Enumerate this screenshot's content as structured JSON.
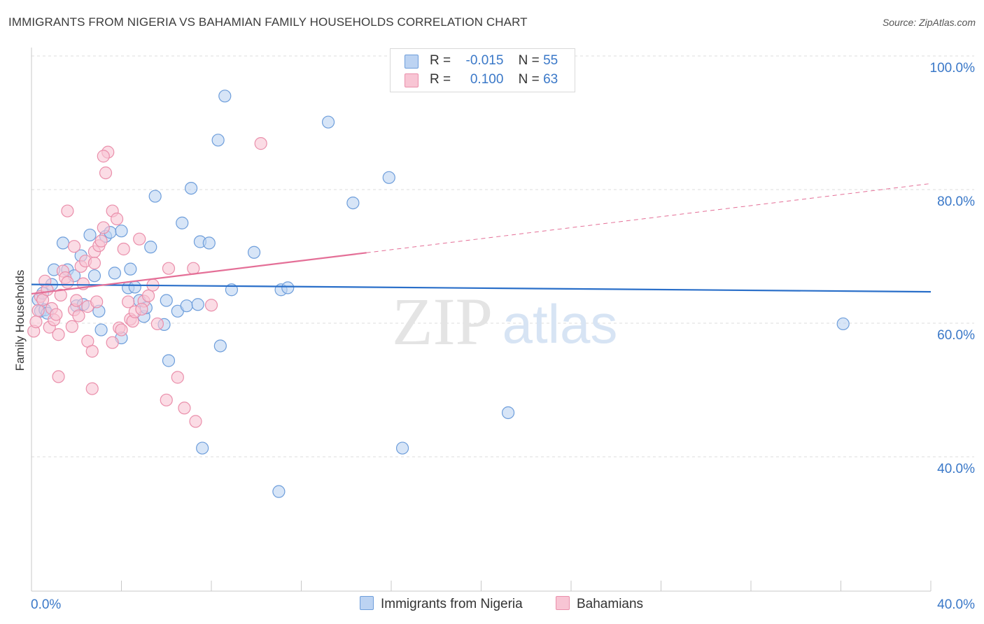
{
  "title": "IMMIGRANTS FROM NIGERIA VS BAHAMIAN FAMILY HOUSEHOLDS CORRELATION CHART",
  "source": "Source: ZipAtlas.com",
  "watermark": {
    "zip": "ZIP",
    "atlas": "atlas"
  },
  "colors": {
    "blue_fill": "#bcd3f2",
    "blue_stroke": "#6e9edb",
    "blue_line": "#2a6fc9",
    "pink_fill": "#f8c5d4",
    "pink_stroke": "#ea8fab",
    "pink_line": "#e46f97",
    "axis_label": "#3a78c8",
    "grid": "#dcdcdc"
  },
  "legend": {
    "r_label": "R =",
    "n_label": "N =",
    "series1": {
      "r": "-0.015",
      "n": "55"
    },
    "series2": {
      "r": "0.100",
      "n": "63"
    }
  },
  "bottom_legend": {
    "series1": "Immigrants from Nigeria",
    "series2": "Bahamians"
  },
  "chart_data": {
    "type": "scatter",
    "title": "IMMIGRANTS FROM NIGERIA VS BAHAMIAN FAMILY HOUSEHOLDS CORRELATION CHART",
    "xlabel": "",
    "ylabel": "Family Households",
    "xlim": [
      0,
      40
    ],
    "ylim": [
      20,
      104
    ],
    "x_tick_labels": [
      "0.0%",
      "40.0%"
    ],
    "y_ticks": [
      40,
      60,
      80,
      100
    ],
    "y_tick_labels": [
      "40.0%",
      "60.0%",
      "80.0%",
      "100.0%"
    ],
    "series": [
      {
        "name": "Immigrants from Nigeria",
        "r": -0.015,
        "n": 55,
        "trend": {
          "x0": 0,
          "y0": 65.8,
          "x1": 40,
          "y1": 64.7,
          "solid_to": 40
        },
        "points": [
          [
            0.3,
            63.5
          ],
          [
            0.4,
            61.8
          ],
          [
            0.5,
            64.5
          ],
          [
            0.6,
            62.0
          ],
          [
            0.7,
            61.5
          ],
          [
            0.9,
            65.8
          ],
          [
            1.0,
            68.0
          ],
          [
            1.4,
            72.0
          ],
          [
            1.6,
            68.0
          ],
          [
            1.9,
            67.1
          ],
          [
            2.0,
            62.6
          ],
          [
            2.2,
            70.1
          ],
          [
            2.3,
            62.8
          ],
          [
            2.6,
            73.2
          ],
          [
            2.8,
            67.1
          ],
          [
            3.0,
            61.8
          ],
          [
            3.1,
            59.0
          ],
          [
            3.3,
            73.0
          ],
          [
            3.5,
            73.6
          ],
          [
            3.7,
            67.5
          ],
          [
            4.0,
            73.8
          ],
          [
            4.0,
            57.8
          ],
          [
            4.3,
            65.3
          ],
          [
            4.4,
            68.1
          ],
          [
            4.6,
            65.4
          ],
          [
            4.8,
            63.4
          ],
          [
            5.0,
            61.0
          ],
          [
            5.1,
            62.3
          ],
          [
            5.3,
            71.4
          ],
          [
            5.5,
            79.0
          ],
          [
            5.9,
            59.8
          ],
          [
            6.0,
            63.4
          ],
          [
            6.1,
            54.4
          ],
          [
            6.5,
            61.8
          ],
          [
            6.7,
            75.0
          ],
          [
            6.9,
            62.6
          ],
          [
            7.1,
            80.2
          ],
          [
            7.4,
            62.8
          ],
          [
            7.5,
            72.2
          ],
          [
            7.6,
            41.3
          ],
          [
            7.9,
            72.0
          ],
          [
            8.3,
            87.4
          ],
          [
            8.4,
            56.6
          ],
          [
            8.6,
            94.0
          ],
          [
            8.9,
            65.0
          ],
          [
            9.9,
            70.6
          ],
          [
            11.1,
            65.0
          ],
          [
            11.4,
            65.3
          ],
          [
            13.2,
            90.1
          ],
          [
            14.3,
            78.0
          ],
          [
            15.9,
            81.8
          ],
          [
            16.5,
            41.3
          ],
          [
            21.2,
            46.6
          ],
          [
            36.1,
            59.9
          ],
          [
            11.0,
            34.8
          ]
        ]
      },
      {
        "name": "Bahamians",
        "r": 0.1,
        "n": 63,
        "trend": {
          "x0": 0,
          "y0": 64.4,
          "x1": 40,
          "y1": 80.9,
          "solid_to": 14.9
        },
        "points": [
          [
            0.1,
            58.8
          ],
          [
            0.2,
            60.2
          ],
          [
            0.3,
            61.9
          ],
          [
            0.4,
            64.0
          ],
          [
            0.5,
            63.5
          ],
          [
            0.6,
            66.3
          ],
          [
            0.7,
            65.0
          ],
          [
            0.8,
            59.4
          ],
          [
            0.9,
            62.2
          ],
          [
            1.0,
            60.5
          ],
          [
            1.1,
            61.3
          ],
          [
            1.2,
            58.3
          ],
          [
            1.3,
            64.2
          ],
          [
            1.4,
            67.8
          ],
          [
            1.5,
            66.8
          ],
          [
            1.6,
            66.1
          ],
          [
            1.8,
            59.5
          ],
          [
            1.9,
            62.0
          ],
          [
            2.0,
            63.4
          ],
          [
            2.1,
            61.1
          ],
          [
            2.2,
            68.5
          ],
          [
            2.3,
            65.9
          ],
          [
            2.4,
            69.3
          ],
          [
            2.5,
            62.5
          ],
          [
            2.5,
            57.3
          ],
          [
            2.7,
            55.8
          ],
          [
            2.8,
            70.7
          ],
          [
            2.8,
            69.0
          ],
          [
            2.9,
            63.2
          ],
          [
            3.0,
            71.6
          ],
          [
            3.1,
            72.3
          ],
          [
            3.2,
            74.3
          ],
          [
            3.3,
            82.5
          ],
          [
            3.4,
            85.6
          ],
          [
            3.6,
            76.8
          ],
          [
            3.8,
            75.6
          ],
          [
            3.9,
            59.3
          ],
          [
            4.0,
            59.0
          ],
          [
            4.1,
            71.1
          ],
          [
            4.3,
            63.2
          ],
          [
            4.4,
            60.6
          ],
          [
            4.5,
            60.3
          ],
          [
            4.6,
            61.7
          ],
          [
            4.8,
            72.6
          ],
          [
            5.0,
            63.3
          ],
          [
            5.2,
            64.1
          ],
          [
            5.4,
            65.7
          ],
          [
            5.6,
            59.9
          ],
          [
            6.0,
            48.5
          ],
          [
            6.1,
            68.2
          ],
          [
            6.5,
            51.9
          ],
          [
            6.8,
            47.3
          ],
          [
            7.2,
            68.2
          ],
          [
            7.3,
            45.3
          ],
          [
            8.0,
            62.7
          ],
          [
            10.2,
            86.9
          ],
          [
            1.6,
            76.8
          ],
          [
            3.2,
            85.0
          ],
          [
            1.2,
            52.0
          ],
          [
            2.7,
            50.2
          ],
          [
            1.9,
            71.5
          ],
          [
            4.9,
            62.1
          ],
          [
            3.6,
            57.1
          ]
        ]
      }
    ]
  }
}
